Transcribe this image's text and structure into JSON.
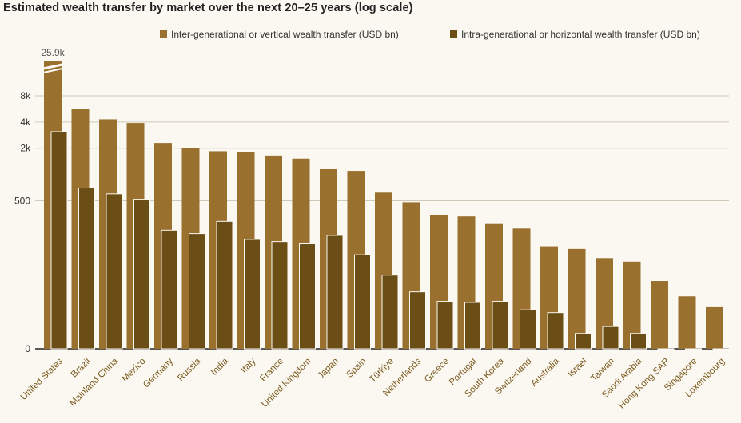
{
  "chart_data": {
    "type": "bar",
    "title": "Estimated wealth transfer by market over the next 20–25 years (log scale)",
    "xlabel": "",
    "ylabel": "",
    "y_scale": "log",
    "y_ticks": [
      {
        "value": 0,
        "label": "0"
      },
      {
        "value": 500,
        "label": "500"
      },
      {
        "value": 2000,
        "label": "2k"
      },
      {
        "value": 4000,
        "label": "4k"
      },
      {
        "value": 8000,
        "label": "8k"
      }
    ],
    "ylim": [
      0,
      8000
    ],
    "grid": true,
    "legend_position": "top-right",
    "categories": [
      "United States",
      "Brazil",
      "Mainland China",
      "Mexico",
      "Germany",
      "Russia",
      "India",
      "Italy",
      "France",
      "United Kingdom",
      "Japan",
      "Spain",
      "Türkiye",
      "Netherlands",
      "Greece",
      "Portugal",
      "South Korea",
      "Switzerland",
      "Australia",
      "Israel",
      "Taiwan",
      "Saudi Arabia",
      "Hong Kong SAR",
      "Singapore",
      "Luxembourg"
    ],
    "series": [
      {
        "name": "Inter-generational or vertical wealth transfer (USD bn)",
        "color": "#9a702f",
        "values": [
          25900,
          5600,
          4300,
          3900,
          2300,
          2000,
          1850,
          1800,
          1650,
          1520,
          1150,
          1100,
          620,
          480,
          340,
          330,
          270,
          240,
          150,
          140,
          110,
          100,
          60,
          40,
          30
        ]
      },
      {
        "name": "Intra-generational or horizontal wealth transfer (USD bn)",
        "color": "#6b4d16",
        "values": [
          3100,
          700,
          600,
          520,
          230,
          210,
          290,
          180,
          170,
          160,
          200,
          120,
          70,
          45,
          35,
          34,
          35,
          28,
          26,
          15,
          18,
          15,
          10,
          8,
          8
        ]
      }
    ],
    "annotations": [
      {
        "category": "United States",
        "text": "25.9k",
        "note": "axis break"
      }
    ]
  }
}
